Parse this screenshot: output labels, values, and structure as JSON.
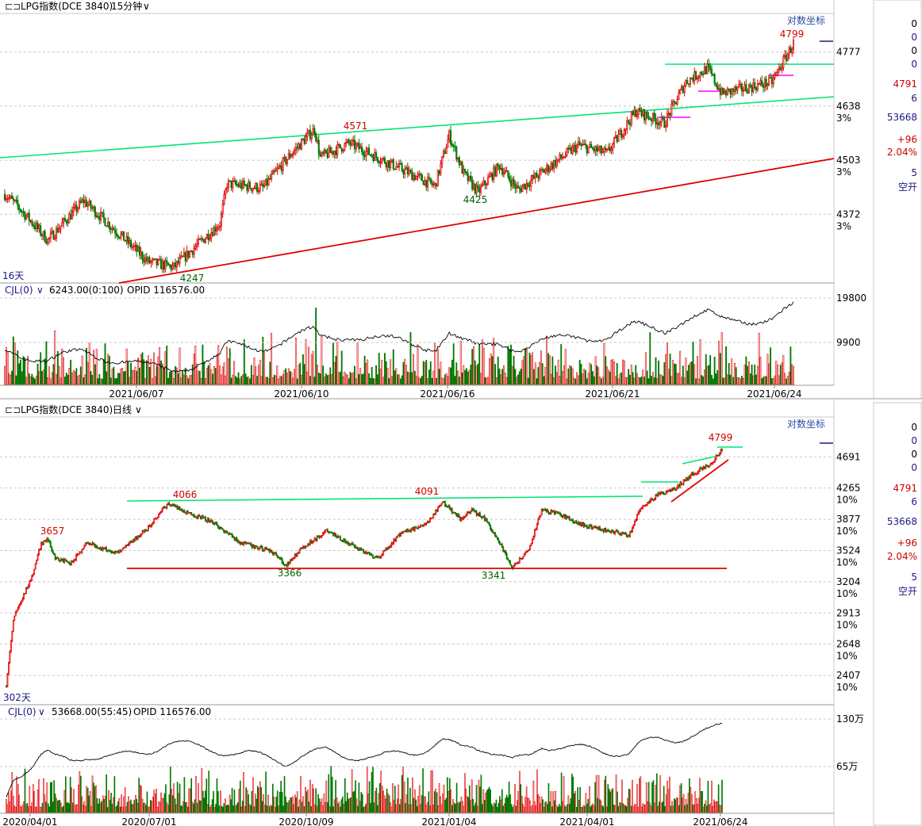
{
  "top_panel": {
    "header": {
      "symbol": "LPG指数(DCE 3840)",
      "period": "15分钟"
    },
    "scale_mode": "对数坐标",
    "days_label": "16天",
    "volume_header": {
      "indicator": "CJL(0)",
      "value": "6243.00(0:100)",
      "opid": "OPID 116576.00"
    },
    "side_panel": [
      "0",
      "0",
      "0",
      "0",
      "4791",
      "6",
      "53668",
      "+96",
      "2.04%",
      "5",
      "空开"
    ],
    "colors": {
      "up": "#e00000",
      "down": "#007800",
      "support": "#e00000",
      "resistance": "#00e676",
      "magenta": "#ff00ff"
    },
    "chart_data": {
      "type": "candlestick",
      "y_ticks": [
        {
          "value": "4777",
          "pct": ""
        },
        {
          "value": "4638",
          "pct": "3%"
        },
        {
          "value": "4503",
          "pct": "3%"
        },
        {
          "value": "4372",
          "pct": "3%"
        }
      ],
      "annotations": [
        "4799",
        "4571",
        "4425",
        "4247"
      ],
      "volume_ticks": [
        "19800",
        "9900"
      ],
      "x_ticks": [
        "2021/06/07",
        "2021/06/10",
        "2021/06/16",
        "2021/06/21",
        "2021/06/24"
      ],
      "key_points": [
        [
          0,
          4420
        ],
        [
          8,
          4395
        ],
        [
          30,
          4310
        ],
        [
          55,
          4405
        ],
        [
          100,
          4260
        ],
        [
          118,
          4247
        ],
        [
          150,
          4350
        ],
        [
          155,
          4445
        ],
        [
          180,
          4435
        ],
        [
          200,
          4520
        ],
        [
          216,
          4580
        ],
        [
          220,
          4510
        ],
        [
          240,
          4545
        ],
        [
          300,
          4440
        ],
        [
          310,
          4565
        ],
        [
          320,
          4470
        ],
        [
          330,
          4425
        ],
        [
          345,
          4490
        ],
        [
          358,
          4430
        ],
        [
          400,
          4540
        ],
        [
          420,
          4520
        ],
        [
          440,
          4625
        ],
        [
          460,
          4595
        ],
        [
          475,
          4700
        ],
        [
          490,
          4735
        ],
        [
          500,
          4670
        ],
        [
          535,
          4700
        ],
        [
          550,
          4799
        ]
      ]
    }
  },
  "bottom_panel": {
    "header": {
      "symbol": "LPG指数(DCE 3840)",
      "period": "日线"
    },
    "scale_mode": "对数坐标",
    "days_label": "302天",
    "volume_header": {
      "indicator": "CJL(0)",
      "value": "53668.00(55:45)",
      "opid": "OPID 116576.00"
    },
    "side_panel": [
      "0",
      "0",
      "0",
      "0",
      "4791",
      "6",
      "53668",
      "+96",
      "2.04%",
      "5",
      "空开"
    ],
    "chart_data": {
      "type": "candlestick",
      "y_ticks": [
        {
          "value": "4691",
          "pct": ""
        },
        {
          "value": "4265",
          "pct": "10%"
        },
        {
          "value": "3877",
          "pct": "10%"
        },
        {
          "value": "3524",
          "pct": "10%"
        },
        {
          "value": "3204",
          "pct": "10%"
        },
        {
          "value": "2913",
          "pct": "10%"
        },
        {
          "value": "2648",
          "pct": "10%"
        },
        {
          "value": "2407",
          "pct": "10%"
        }
      ],
      "annotations": [
        "4799",
        "4066",
        "4091",
        "3657",
        "3366",
        "3341"
      ],
      "volume_ticks": [
        "130万",
        "65万"
      ],
      "x_ticks": [
        "2020/04/01",
        "2020/07/01",
        "2020/10/09",
        "2021/01/04",
        "2021/04/01",
        "2021/06/24"
      ],
      "key_points": [
        [
          0,
          2330
        ],
        [
          6,
          2850
        ],
        [
          12,
          3010
        ],
        [
          22,
          3250
        ],
        [
          30,
          3600
        ],
        [
          35,
          3657
        ],
        [
          42,
          3450
        ],
        [
          55,
          3380
        ],
        [
          70,
          3620
        ],
        [
          78,
          3560
        ],
        [
          95,
          3500
        ],
        [
          120,
          3750
        ],
        [
          135,
          4010
        ],
        [
          140,
          4066
        ],
        [
          155,
          3960
        ],
        [
          175,
          3860
        ],
        [
          200,
          3620
        ],
        [
          230,
          3500
        ],
        [
          240,
          3366
        ],
        [
          255,
          3560
        ],
        [
          275,
          3740
        ],
        [
          300,
          3560
        ],
        [
          320,
          3440
        ],
        [
          340,
          3730
        ],
        [
          360,
          3800
        ],
        [
          375,
          4091
        ],
        [
          390,
          3880
        ],
        [
          400,
          3980
        ],
        [
          410,
          3900
        ],
        [
          420,
          3700
        ],
        [
          435,
          3341
        ],
        [
          450,
          3560
        ],
        [
          460,
          3990
        ],
        [
          475,
          3940
        ],
        [
          490,
          3830
        ],
        [
          510,
          3760
        ],
        [
          520,
          3740
        ],
        [
          535,
          3690
        ],
        [
          545,
          4010
        ],
        [
          560,
          4180
        ],
        [
          575,
          4260
        ],
        [
          590,
          4460
        ],
        [
          605,
          4580
        ],
        [
          615,
          4799
        ]
      ]
    }
  }
}
